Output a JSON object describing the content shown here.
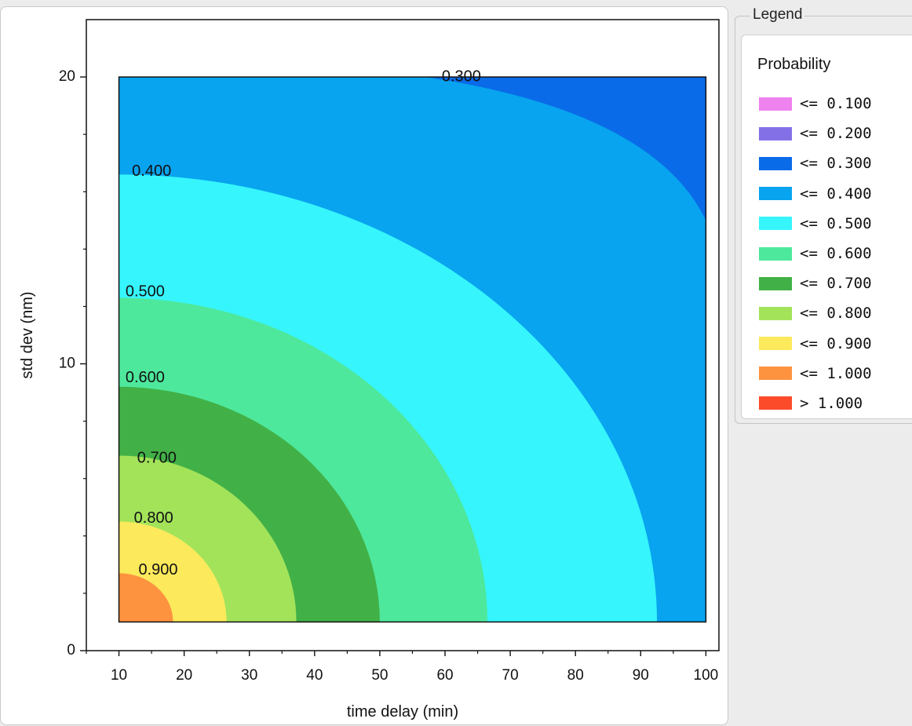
{
  "legend": {
    "title": "Legend",
    "heading": "Probability",
    "items": [
      {
        "label": "<= 0.100",
        "color": "#ee82ee"
      },
      {
        "label": "<= 0.200",
        "color": "#8470e6"
      },
      {
        "label": "<= 0.300",
        "color": "#0a6be8"
      },
      {
        "label": "<= 0.400",
        "color": "#08a4ef"
      },
      {
        "label": "<= 0.500",
        "color": "#36f5fc"
      },
      {
        "label": "<= 0.600",
        "color": "#4ee89c"
      },
      {
        "label": "<= 0.700",
        "color": "#41b147"
      },
      {
        "label": "<= 0.800",
        "color": "#a3e35a"
      },
      {
        "label": "<= 0.900",
        "color": "#fde95c"
      },
      {
        "label": "<= 1.000",
        "color": "#fd923f"
      },
      {
        "label": "> 1.000",
        "color": "#fb4b2a"
      }
    ]
  },
  "chart_data": {
    "type": "heatmap",
    "subtype": "filled-contour",
    "xlabel": "time delay (min)",
    "ylabel": "std dev (nm)",
    "xlim": [
      5,
      102
    ],
    "ylim": [
      0,
      22
    ],
    "x_ticks": [
      10,
      20,
      30,
      40,
      50,
      60,
      70,
      80,
      90,
      100
    ],
    "y_ticks_labeled": [
      0,
      10,
      20
    ],
    "y_ticks_minor": [
      2,
      4,
      6,
      8,
      12,
      14,
      16,
      18
    ],
    "data_region": {
      "x": [
        10,
        100
      ],
      "y": [
        1,
        20
      ]
    },
    "grid": false,
    "legend_position": "right",
    "contour_levels": [
      {
        "value": 0.9,
        "label": "0.900",
        "x_at_y1": 26.5,
        "y_at_x10": 4.5,
        "fill": "#fde95c",
        "label_pos": {
          "x": 13.0,
          "y": 2.8
        }
      },
      {
        "value": 0.8,
        "label": "0.800",
        "x_at_y1": 37.2,
        "y_at_x10": 6.8,
        "fill": "#a3e35a",
        "label_pos": {
          "x": 12.3,
          "y": 4.6
        }
      },
      {
        "value": 0.7,
        "label": "0.700",
        "x_at_y1": 50.0,
        "y_at_x10": 9.2,
        "fill": "#41b147",
        "label_pos": {
          "x": 12.8,
          "y": 6.7
        }
      },
      {
        "value": 0.6,
        "label": "0.600",
        "x_at_y1": 66.5,
        "y_at_x10": 12.3,
        "fill": "#4ee89c",
        "label_pos": {
          "x": 11.0,
          "y": 9.5
        }
      },
      {
        "value": 0.5,
        "label": "0.500",
        "x_at_y1": 92.5,
        "y_at_x10": 16.6,
        "fill": "#36f5fc",
        "label_pos": {
          "x": 11.0,
          "y": 12.5
        }
      },
      {
        "value": 0.4,
        "label": "0.400",
        "x_at_y1": 100,
        "y_at_x10": 20,
        "fill": "#08a4ef",
        "label_pos": {
          "x": 12.0,
          "y": 16.7
        }
      }
    ],
    "high_fill": {
      "value": 1.0,
      "fill": "#fd923f",
      "x_at_y1": 18.3,
      "y_at_x10": 2.7
    },
    "corner_region": {
      "value": 0.3,
      "label": "0.300",
      "fill": "#0a6be8",
      "x_at_y20": 57.0,
      "y_at_x100": 15.0,
      "label_pos": {
        "x": 59.5,
        "y": 20.0
      }
    }
  }
}
